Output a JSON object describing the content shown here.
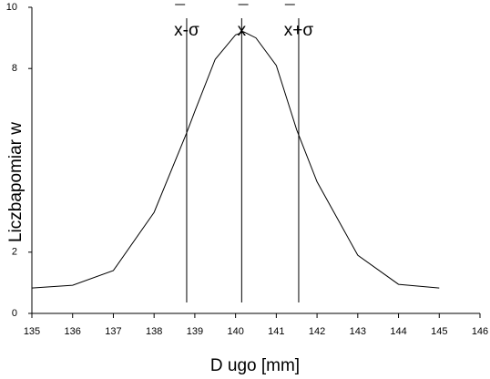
{
  "chart_data": {
    "type": "line",
    "x_label": "D ugo     [mm]",
    "y_label": "Liczbapomiar w",
    "x": [
      135,
      136,
      137,
      138,
      138.8,
      139,
      139.5,
      140,
      140.2,
      140.5,
      141,
      141.5,
      142,
      143,
      144,
      145
    ],
    "series": [
      {
        "color": "#000000",
        "values": [
          0.83,
          0.92,
          1.4,
          3.3,
          5.9,
          6.6,
          8.3,
          9.1,
          9.2,
          9.0,
          8.1,
          6.0,
          4.3,
          1.9,
          0.95,
          0.83
        ]
      }
    ],
    "xlim": [
      135,
      146
    ],
    "xticks": [
      135,
      136,
      137,
      138,
      139,
      140,
      141,
      142,
      143,
      144,
      145,
      146
    ],
    "ylim": [
      0,
      10
    ],
    "yticks": [
      0,
      2,
      8,
      10
    ],
    "annotations": [
      {
        "text": "x-σ",
        "x": 138.8
      },
      {
        "text": "x",
        "x": 140.15
      },
      {
        "text": "x+σ",
        "x": 141.55
      }
    ]
  }
}
